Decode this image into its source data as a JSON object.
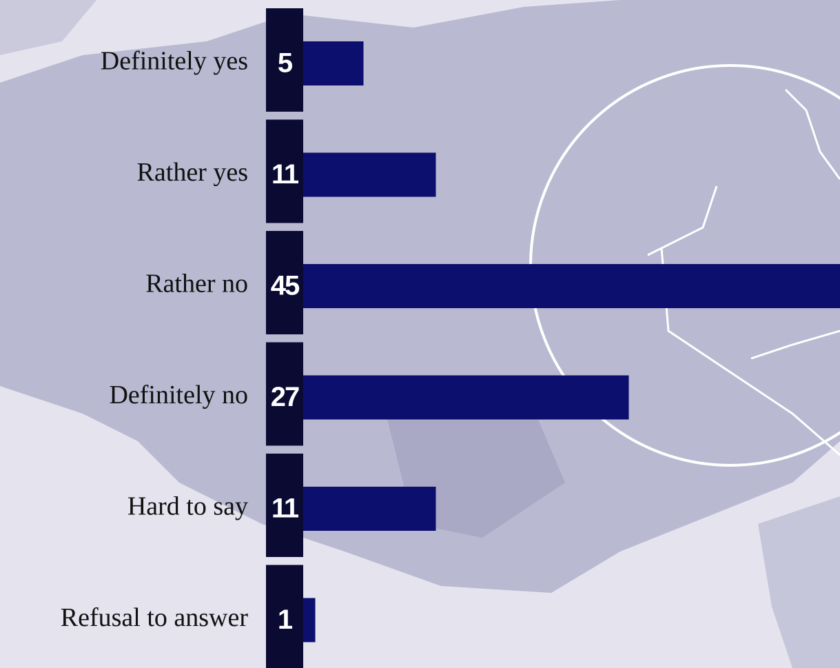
{
  "chart_data": {
    "type": "bar",
    "orientation": "horizontal",
    "categories": [
      "Definitely yes",
      "Rather yes",
      "Rather no",
      "Definitely no",
      "Hard to say",
      "Refusal to answer"
    ],
    "values": [
      5,
      11,
      45,
      27,
      11,
      1
    ],
    "color": "#0d0f6e"
  }
}
